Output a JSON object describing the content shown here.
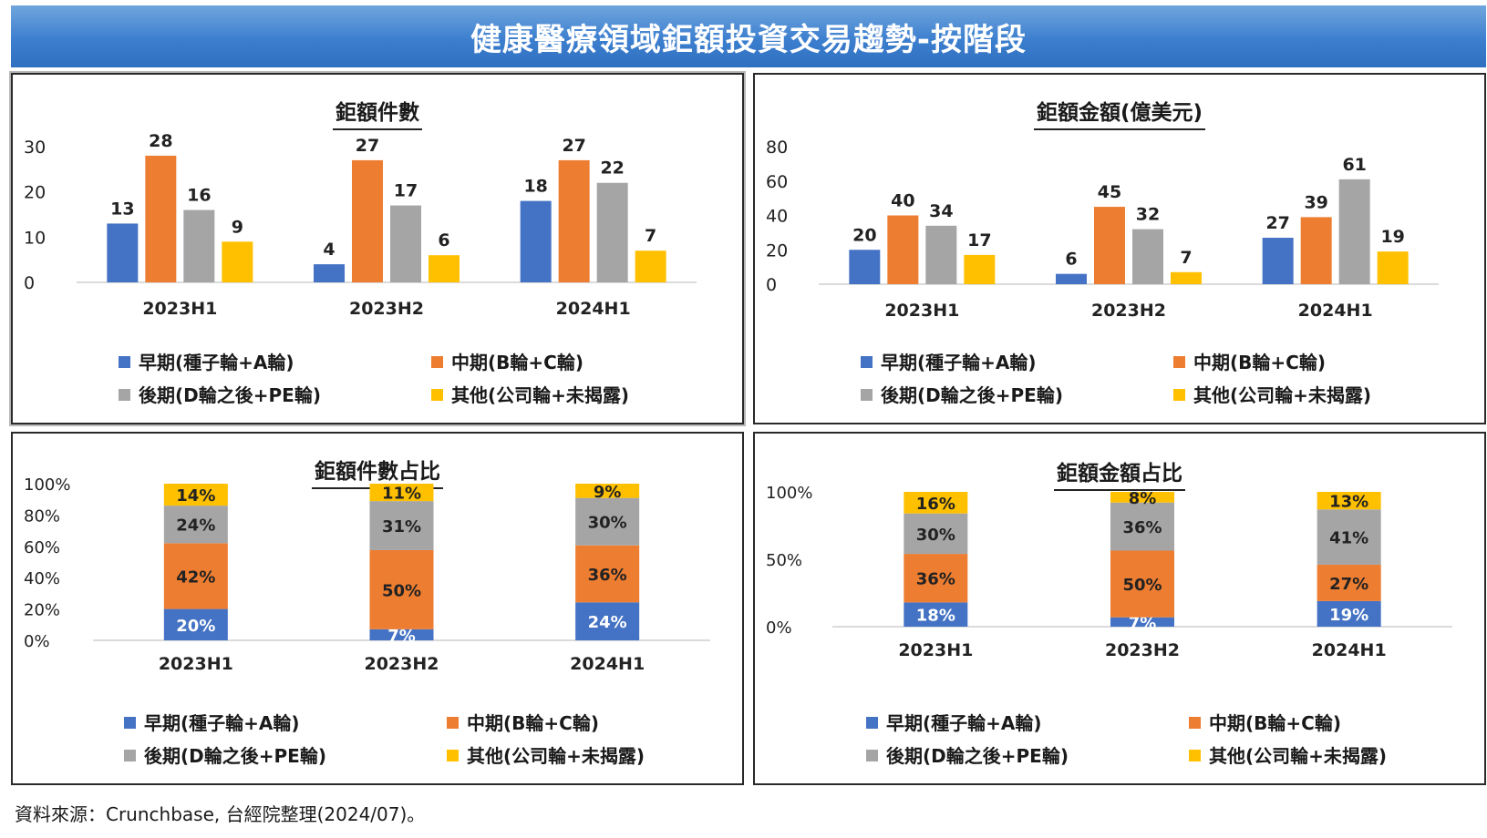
{
  "header": {
    "title": "健康醫療領域鉅額投資交易趨勢-按階段"
  },
  "legend": [
    {
      "name": "早期(種子輪+A輪)",
      "color": "#4472c4"
    },
    {
      "name": "中期(B輪+C輪)",
      "color": "#ed7d31"
    },
    {
      "name": "後期(D輪之後+PE輪)",
      "color": "#a5a5a5"
    },
    {
      "name": "其他(公司輪+未揭露)",
      "color": "#ffc000"
    }
  ],
  "chart_data": [
    {
      "type": "bar",
      "title": "鉅額件數",
      "categories": [
        "2023H1",
        "2023H2",
        "2024H1"
      ],
      "ylim": [
        0,
        30
      ],
      "yticks": [
        "0",
        "10",
        "20",
        "30"
      ],
      "series": [
        {
          "name": "早期(種子輪+A輪)",
          "values": [
            13,
            4,
            18
          ]
        },
        {
          "name": "中期(B輪+C輪)",
          "values": [
            28,
            27,
            27
          ]
        },
        {
          "name": "後期(D輪之後+PE輪)",
          "values": [
            16,
            17,
            22
          ]
        },
        {
          "name": "其他(公司輪+未揭露)",
          "values": [
            9,
            6,
            7
          ]
        }
      ]
    },
    {
      "type": "bar",
      "title": "鉅額金額(億美元)",
      "categories": [
        "2023H1",
        "2023H2",
        "2024H1"
      ],
      "ylim": [
        0,
        80
      ],
      "yticks": [
        "0",
        "20",
        "40",
        "60",
        "80"
      ],
      "series": [
        {
          "name": "早期(種子輪+A輪)",
          "values": [
            20,
            6,
            27
          ]
        },
        {
          "name": "中期(B輪+C輪)",
          "values": [
            40,
            45,
            39
          ]
        },
        {
          "name": "後期(D輪之後+PE輪)",
          "values": [
            34,
            32,
            61
          ]
        },
        {
          "name": "其他(公司輪+未揭露)",
          "values": [
            17,
            7,
            19
          ]
        }
      ]
    },
    {
      "type": "bar",
      "stacked": true,
      "title": "鉅額件數占比",
      "categories": [
        "2023H1",
        "2023H2",
        "2024H1"
      ],
      "ylim": [
        0,
        100
      ],
      "yticks": [
        "0%",
        "20%",
        "40%",
        "60%",
        "80%",
        "100%"
      ],
      "series": [
        {
          "name": "早期(種子輪+A輪)",
          "values": [
            20,
            7,
            24
          ],
          "labels": [
            "20%",
            "7%",
            "24%"
          ]
        },
        {
          "name": "中期(B輪+C輪)",
          "values": [
            42,
            50,
            36
          ],
          "labels": [
            "42%",
            "50%",
            "36%"
          ]
        },
        {
          "name": "後期(D輪之後+PE輪)",
          "values": [
            24,
            31,
            30
          ],
          "labels": [
            "24%",
            "31%",
            "30%"
          ]
        },
        {
          "name": "其他(公司輪+未揭露)",
          "values": [
            14,
            11,
            9
          ],
          "labels": [
            "14%",
            "11%",
            "9%"
          ]
        }
      ]
    },
    {
      "type": "bar",
      "stacked": true,
      "title": "鉅額金額占比",
      "categories": [
        "2023H1",
        "2023H2",
        "2024H1"
      ],
      "ylim": [
        0,
        100
      ],
      "yticks": [
        "0%",
        "50%",
        "100%"
      ],
      "series": [
        {
          "name": "早期(種子輪+A輪)",
          "values": [
            18,
            7,
            19
          ],
          "labels": [
            "18%",
            "7%",
            "19%"
          ]
        },
        {
          "name": "中期(B輪+C輪)",
          "values": [
            36,
            50,
            27
          ],
          "labels": [
            "36%",
            "50%",
            "27%"
          ]
        },
        {
          "name": "後期(D輪之後+PE輪)",
          "values": [
            30,
            36,
            41
          ],
          "labels": [
            "30%",
            "36%",
            "41%"
          ]
        },
        {
          "name": "其他(公司輪+未揭露)",
          "values": [
            16,
            8,
            13
          ],
          "labels": [
            "16%",
            "8%",
            "13%"
          ]
        }
      ]
    }
  ],
  "footer": {
    "source": "資料來源：Crunchbase, 台經院整理(2024/07)。"
  }
}
